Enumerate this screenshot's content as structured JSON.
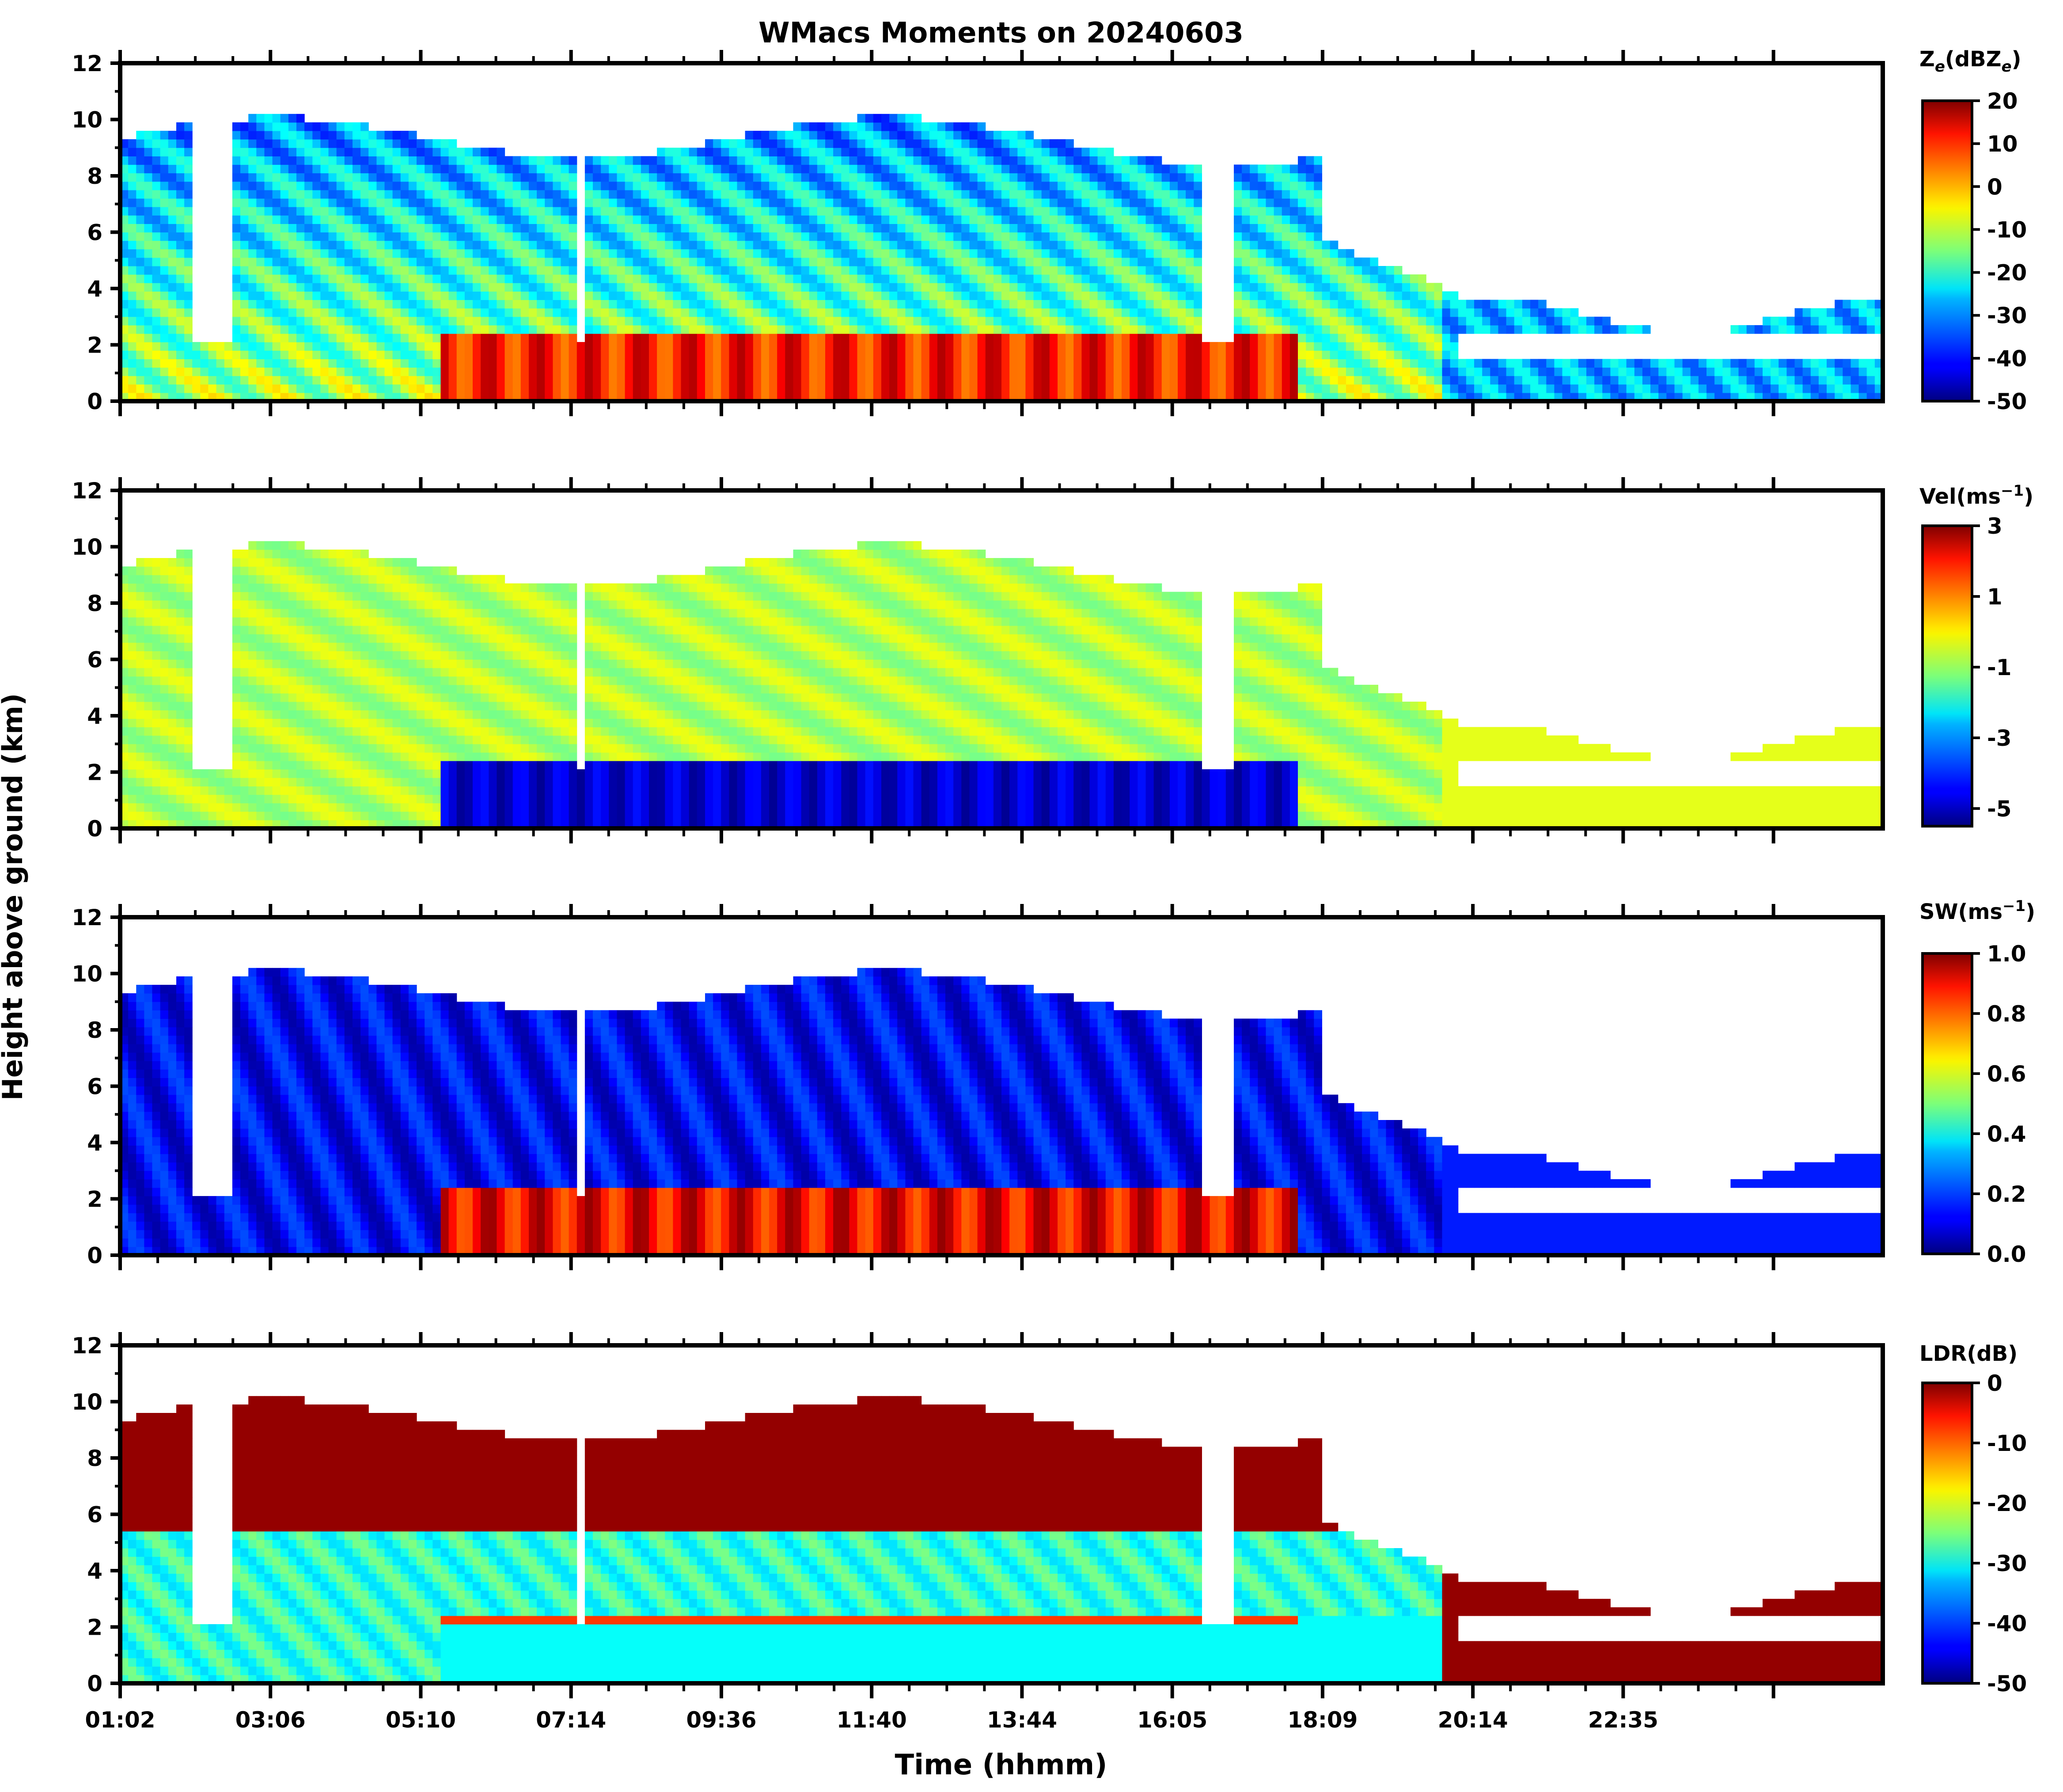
{
  "figure": {
    "title": "WMacs Moments on 20240603",
    "xlabel": "Time (hhmm)",
    "ylabel": "Height above ground (km)"
  },
  "chart_data": [
    {
      "type": "heatmap",
      "name": "Ze",
      "colorbar_label": "Z_e(dBZ_e)",
      "cbar_label_parts": [
        "Z",
        "e",
        "(dBZ",
        "e",
        ")"
      ],
      "vmin": -50,
      "vmax": 20,
      "cbar_ticks": [
        20,
        10,
        0,
        -10,
        -20,
        -30,
        -40,
        -50
      ],
      "y_ticks": [
        0,
        2,
        4,
        6,
        8,
        10,
        12
      ],
      "ylim": [
        0,
        12
      ]
    },
    {
      "type": "heatmap",
      "name": "Vel",
      "colorbar_label": "Vel(ms^-1)",
      "cbar_label_parts": [
        "Vel(ms",
        "−1",
        ")"
      ],
      "vmin": -5.5,
      "vmax": 3,
      "cbar_ticks": [
        3,
        1,
        -1,
        -3,
        -5
      ],
      "y_ticks": [
        0,
        2,
        4,
        6,
        8,
        10,
        12
      ],
      "ylim": [
        0,
        12
      ]
    },
    {
      "type": "heatmap",
      "name": "SW",
      "colorbar_label": "SW(ms^-1)",
      "cbar_label_parts": [
        "SW(ms",
        "−1",
        ")"
      ],
      "vmin": 0,
      "vmax": 1,
      "cbar_ticks": [
        "1.0",
        "0.8",
        "0.6",
        "0.4",
        "0.2",
        "0.0"
      ],
      "y_ticks": [
        0,
        2,
        4,
        6,
        8,
        10,
        12
      ],
      "ylim": [
        0,
        12
      ]
    },
    {
      "type": "heatmap",
      "name": "LDR",
      "colorbar_label": "LDR(dB)",
      "cbar_label_parts": [
        "LDR(dB)"
      ],
      "vmin": -50,
      "vmax": 0,
      "cbar_ticks": [
        0,
        -10,
        -20,
        -30,
        -40,
        -50
      ],
      "y_ticks": [
        0,
        2,
        4,
        6,
        8,
        10,
        12
      ],
      "ylim": [
        0,
        12
      ],
      "x_tick_labels": [
        "01:02",
        "03:06",
        "05:10",
        "07:14",
        "09:36",
        "11:40",
        "13:44",
        "16:05",
        "18:09",
        "20:14",
        "22:35"
      ]
    }
  ]
}
